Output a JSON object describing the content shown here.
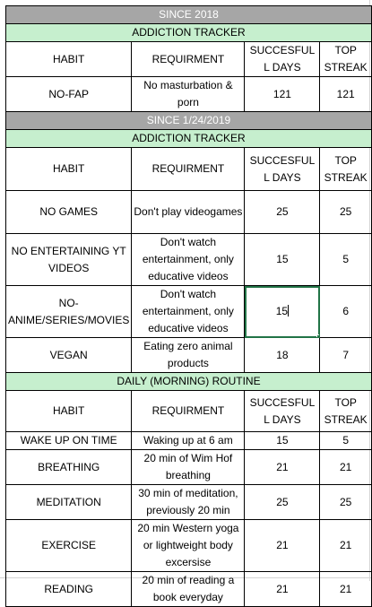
{
  "columns": [
    "HABIT",
    "REQUIRMENT",
    "SUCCESFULL DAYS",
    "TOP STREAK"
  ],
  "section1": {
    "since": "SINCE 2018",
    "title": "ADDICTION TRACKER",
    "header": {
      "habit": "HABIT",
      "requirement": "REQUIRMENT",
      "days": "SUCCESFULL DAYS",
      "streak": "TOP STREAK"
    },
    "rows": [
      {
        "habit": "NO-FAP",
        "requirement": "No masturbation & porn",
        "days": "121",
        "streak": "121"
      }
    ]
  },
  "section2": {
    "since": "SINCE 1/24/2019",
    "title": "ADDICTION TRACKER",
    "header": {
      "habit": "HABIT",
      "requirement": "REQUIRMENT",
      "days": "SUCCESFULL DAYS",
      "streak": "TOP STREAK"
    },
    "rows": [
      {
        "habit": "NO GAMES",
        "requirement": "Don't play videogames",
        "days": "25",
        "streak": "25"
      },
      {
        "habit": "NO ENTERTAINING YT VIDEOS",
        "requirement": "Don't watch entertainment, only educative videos",
        "days": "15",
        "streak": "5"
      },
      {
        "habit": "NO-ANIME/SERIES/MOVIES",
        "requirement": "Don't watch entertainment, only educative videos",
        "days": "15",
        "streak": "6"
      },
      {
        "habit": "VEGAN",
        "requirement": "Eating zero animal products",
        "days": "18",
        "streak": "7"
      }
    ]
  },
  "section3": {
    "title": "DAILY (MORNING) ROUTINE",
    "header": {
      "habit": "HABIT",
      "requirement": "REQUIRMENT",
      "days": "SUCCESFULL DAYS",
      "streak": "TOP STREAK"
    },
    "rows": [
      {
        "habit": "WAKE UP ON TIME",
        "requirement": "Waking up at 6 am",
        "days": "15",
        "streak": "5"
      },
      {
        "habit": "BREATHING",
        "requirement": "20 min of Wim Hof breathing",
        "days": "21",
        "streak": "21"
      },
      {
        "habit": "MEDITATION",
        "requirement": "30 min of meditation, previously 20 min",
        "days": "25",
        "streak": "25"
      },
      {
        "habit": "EXERCISE",
        "requirement": "20 min Western yoga or lightweight body excersise",
        "days": "21",
        "streak": "21"
      },
      {
        "habit": "READING",
        "requirement": "20 min of reading a book everyday",
        "days": "21",
        "streak": "21"
      }
    ]
  },
  "colors": {
    "band_gray": "#a6a6a6",
    "band_green": "#c6efce",
    "selection": "#217346"
  }
}
